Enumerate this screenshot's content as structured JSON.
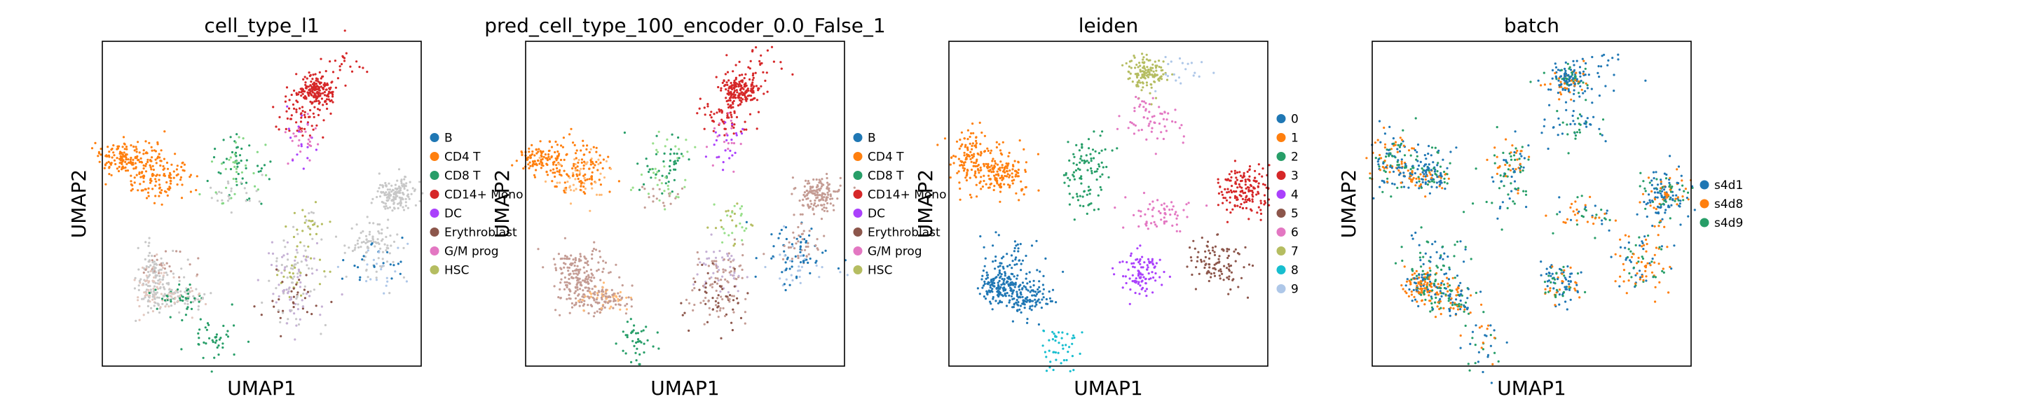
{
  "figure": {
    "background": "#ffffff",
    "panel_count": 4
  },
  "chart_data": [
    {
      "type": "scatter",
      "title": "cell_type_l1",
      "xlabel": "UMAP1",
      "ylabel": "UMAP2",
      "grid": false,
      "legend_placement": "right",
      "legend": [
        {
          "label": "B",
          "color": "#1f77b4"
        },
        {
          "label": "CD4 T",
          "color": "#ff7f0e"
        },
        {
          "label": "CD8 T",
          "color": "#279e68"
        },
        {
          "label": "CD14+ Mono",
          "color": "#d62728"
        },
        {
          "label": "DC",
          "color": "#aa40fc"
        },
        {
          "label": "Erythroblast",
          "color": "#8c564b"
        },
        {
          "label": "G/M prog",
          "color": "#e377c2"
        },
        {
          "label": "HSC",
          "color": "#b5bd61"
        }
      ],
      "clusters": [
        {
          "x": 0.67,
          "y": 0.15,
          "count": 170,
          "colors": [
            "#d62728"
          ]
        },
        {
          "x": 0.62,
          "y": 0.23,
          "count": 60,
          "colors": [
            "#d62728"
          ]
        },
        {
          "x": 0.76,
          "y": 0.08,
          "count": 25,
          "colors": [
            "#d62728"
          ]
        },
        {
          "x": 0.63,
          "y": 0.31,
          "count": 40,
          "colors": [
            "#aa40fc",
            "#e377c2"
          ]
        },
        {
          "x": 0.06,
          "y": 0.36,
          "count": 120,
          "colors": [
            "#ff7f0e"
          ]
        },
        {
          "x": 0.17,
          "y": 0.42,
          "count": 110,
          "colors": [
            "#ff7f0e"
          ]
        },
        {
          "x": 0.17,
          "y": 0.36,
          "count": 40,
          "colors": [
            "#ff7f0e"
          ]
        },
        {
          "x": 0.44,
          "y": 0.38,
          "count": 70,
          "colors": [
            "#86d886",
            "#279e68"
          ]
        },
        {
          "x": 0.42,
          "y": 0.47,
          "count": 30,
          "colors": [
            "#c8c8c8",
            "#86d886"
          ]
        },
        {
          "x": 0.65,
          "y": 0.56,
          "count": 35,
          "colors": [
            "#b5bd61",
            "#c8c8c8"
          ]
        },
        {
          "x": 0.61,
          "y": 0.7,
          "count": 80,
          "colors": [
            "#c5b0d5",
            "#b5bd61",
            "#c8c8c8"
          ]
        },
        {
          "x": 0.6,
          "y": 0.8,
          "count": 90,
          "colors": [
            "#8c564b",
            "#c5b0d5",
            "#c8c8c8"
          ]
        },
        {
          "x": 0.92,
          "y": 0.47,
          "count": 140,
          "colors": [
            "#c8c8c8"
          ]
        },
        {
          "x": 0.85,
          "y": 0.62,
          "count": 70,
          "colors": [
            "#c8c8c8"
          ]
        },
        {
          "x": 0.86,
          "y": 0.69,
          "count": 60,
          "colors": [
            "#1f77b4",
            "#aec7e8",
            "#c8c8c8"
          ]
        },
        {
          "x": 0.16,
          "y": 0.75,
          "count": 150,
          "colors": [
            "#c8c8c8",
            "#c8c8c8",
            "#e3c7be"
          ]
        },
        {
          "x": 0.25,
          "y": 0.79,
          "count": 120,
          "colors": [
            "#c8c8c8",
            "#c8c8c8",
            "#e3c7be",
            "#279e68"
          ]
        },
        {
          "x": 0.19,
          "y": 0.68,
          "count": 50,
          "colors": [
            "#c49c94",
            "#c8c8c8"
          ]
        },
        {
          "x": 0.35,
          "y": 0.92,
          "count": 40,
          "colors": [
            "#279e68"
          ]
        }
      ]
    },
    {
      "type": "scatter",
      "title": "pred_cell_type_100_encoder_0.0_False_1",
      "xlabel": "UMAP1",
      "ylabel": "UMAP2",
      "grid": false,
      "legend_placement": "right",
      "legend": [
        {
          "label": "B",
          "color": "#1f77b4"
        },
        {
          "label": "CD4 T",
          "color": "#ff7f0e"
        },
        {
          "label": "CD8 T",
          "color": "#279e68"
        },
        {
          "label": "CD14+ Mono",
          "color": "#d62728"
        },
        {
          "label": "DC",
          "color": "#aa40fc"
        },
        {
          "label": "Erythroblast",
          "color": "#8c564b"
        },
        {
          "label": "G/M prog",
          "color": "#e377c2"
        },
        {
          "label": "HSC",
          "color": "#b5bd61"
        }
      ],
      "clusters": [
        {
          "x": 0.67,
          "y": 0.15,
          "count": 170,
          "colors": [
            "#d62728"
          ]
        },
        {
          "x": 0.62,
          "y": 0.23,
          "count": 60,
          "colors": [
            "#d62728"
          ]
        },
        {
          "x": 0.76,
          "y": 0.08,
          "count": 25,
          "colors": [
            "#d62728"
          ]
        },
        {
          "x": 0.63,
          "y": 0.31,
          "count": 40,
          "colors": [
            "#aa40fc",
            "#e377c2"
          ]
        },
        {
          "x": 0.06,
          "y": 0.36,
          "count": 120,
          "colors": [
            "#ff7f0e"
          ]
        },
        {
          "x": 0.17,
          "y": 0.42,
          "count": 110,
          "colors": [
            "#ff7f0e",
            "#ffbb78"
          ]
        },
        {
          "x": 0.17,
          "y": 0.36,
          "count": 40,
          "colors": [
            "#ff7f0e"
          ]
        },
        {
          "x": 0.44,
          "y": 0.38,
          "count": 70,
          "colors": [
            "#98df8a",
            "#279e68"
          ]
        },
        {
          "x": 0.42,
          "y": 0.47,
          "count": 30,
          "colors": [
            "#98df8a",
            "#c49c94"
          ]
        },
        {
          "x": 0.65,
          "y": 0.56,
          "count": 35,
          "colors": [
            "#b5bd61",
            "#98df8a"
          ]
        },
        {
          "x": 0.61,
          "y": 0.7,
          "count": 80,
          "colors": [
            "#c5b0d5",
            "#c49c94"
          ]
        },
        {
          "x": 0.6,
          "y": 0.8,
          "count": 90,
          "colors": [
            "#8c564b",
            "#c49c94"
          ]
        },
        {
          "x": 0.92,
          "y": 0.47,
          "count": 140,
          "colors": [
            "#c49c94"
          ]
        },
        {
          "x": 0.85,
          "y": 0.62,
          "count": 70,
          "colors": [
            "#c49c94",
            "#1f77b4"
          ]
        },
        {
          "x": 0.86,
          "y": 0.69,
          "count": 60,
          "colors": [
            "#1f77b4",
            "#aec7e8"
          ]
        },
        {
          "x": 0.16,
          "y": 0.75,
          "count": 150,
          "colors": [
            "#c49c94"
          ]
        },
        {
          "x": 0.25,
          "y": 0.79,
          "count": 120,
          "colors": [
            "#c49c94",
            "#c49c94",
            "#ffbb78"
          ]
        },
        {
          "x": 0.19,
          "y": 0.68,
          "count": 50,
          "colors": [
            "#c49c94"
          ]
        },
        {
          "x": 0.35,
          "y": 0.92,
          "count": 40,
          "colors": [
            "#279e68"
          ]
        }
      ]
    },
    {
      "type": "scatter",
      "title": "leiden",
      "xlabel": "UMAP1",
      "ylabel": "UMAP2",
      "grid": false,
      "legend_placement": "right",
      "legend": [
        {
          "label": "0",
          "color": "#1f77b4"
        },
        {
          "label": "1",
          "color": "#ff7f0e"
        },
        {
          "label": "2",
          "color": "#279e68"
        },
        {
          "label": "3",
          "color": "#d62728"
        },
        {
          "label": "4",
          "color": "#aa40fc"
        },
        {
          "label": "5",
          "color": "#8c564b"
        },
        {
          "label": "6",
          "color": "#e377c2"
        },
        {
          "label": "7",
          "color": "#b5bd61"
        },
        {
          "label": "8",
          "color": "#17becf"
        },
        {
          "label": "9",
          "color": "#aec7e8"
        }
      ],
      "clusters": [
        {
          "x": 0.62,
          "y": 0.1,
          "count": 130,
          "colors": [
            "#b5bd61"
          ]
        },
        {
          "x": 0.72,
          "y": 0.09,
          "count": 20,
          "colors": [
            "#aec7e8"
          ]
        },
        {
          "x": 0.63,
          "y": 0.24,
          "count": 60,
          "colors": [
            "#e377c2"
          ]
        },
        {
          "x": 0.06,
          "y": 0.36,
          "count": 120,
          "colors": [
            "#ff7f0e"
          ]
        },
        {
          "x": 0.17,
          "y": 0.42,
          "count": 110,
          "colors": [
            "#ff7f0e"
          ]
        },
        {
          "x": 0.17,
          "y": 0.36,
          "count": 40,
          "colors": [
            "#ff7f0e"
          ]
        },
        {
          "x": 0.44,
          "y": 0.38,
          "count": 70,
          "colors": [
            "#279e68"
          ]
        },
        {
          "x": 0.42,
          "y": 0.47,
          "count": 30,
          "colors": [
            "#279e68"
          ]
        },
        {
          "x": 0.67,
          "y": 0.53,
          "count": 60,
          "colors": [
            "#e377c2"
          ]
        },
        {
          "x": 0.61,
          "y": 0.72,
          "count": 100,
          "colors": [
            "#aa40fc"
          ]
        },
        {
          "x": 0.93,
          "y": 0.46,
          "count": 160,
          "colors": [
            "#d62728"
          ]
        },
        {
          "x": 0.84,
          "y": 0.68,
          "count": 100,
          "colors": [
            "#8c564b"
          ]
        },
        {
          "x": 0.16,
          "y": 0.75,
          "count": 150,
          "colors": [
            "#1f77b4"
          ]
        },
        {
          "x": 0.25,
          "y": 0.79,
          "count": 120,
          "colors": [
            "#1f77b4"
          ]
        },
        {
          "x": 0.19,
          "y": 0.66,
          "count": 50,
          "colors": [
            "#1f77b4"
          ]
        },
        {
          "x": 0.35,
          "y": 0.93,
          "count": 45,
          "colors": [
            "#17becf"
          ]
        }
      ]
    },
    {
      "type": "scatter",
      "title": "batch",
      "xlabel": "UMAP1",
      "ylabel": "UMAP2",
      "grid": false,
      "legend_placement": "right",
      "legend": [
        {
          "label": "s4d1",
          "color": "#1f77b4"
        },
        {
          "label": "s4d8",
          "color": "#ff7f0e"
        },
        {
          "label": "s4d9",
          "color": "#279e68"
        }
      ],
      "clusters": [
        {
          "x": 0.62,
          "y": 0.12,
          "count": 150,
          "colors": [
            "#1f77b4",
            "#1f77b4",
            "#1f77b4",
            "#279e68",
            "#ff7f0e"
          ]
        },
        {
          "x": 0.73,
          "y": 0.09,
          "count": 20,
          "colors": [
            "#1f77b4"
          ]
        },
        {
          "x": 0.63,
          "y": 0.25,
          "count": 50,
          "colors": [
            "#1f77b4",
            "#1f77b4",
            "#279e68"
          ]
        },
        {
          "x": 0.06,
          "y": 0.36,
          "count": 120,
          "colors": [
            "#1f77b4",
            "#1f77b4",
            "#279e68",
            "#ff7f0e"
          ]
        },
        {
          "x": 0.17,
          "y": 0.42,
          "count": 110,
          "colors": [
            "#1f77b4",
            "#1f77b4",
            "#279e68",
            "#ff7f0e"
          ]
        },
        {
          "x": 0.17,
          "y": 0.36,
          "count": 40,
          "colors": [
            "#1f77b4",
            "#279e68"
          ]
        },
        {
          "x": 0.44,
          "y": 0.38,
          "count": 70,
          "colors": [
            "#ff7f0e",
            "#1f77b4",
            "#279e68"
          ]
        },
        {
          "x": 0.42,
          "y": 0.47,
          "count": 30,
          "colors": [
            "#1f77b4",
            "#279e68"
          ]
        },
        {
          "x": 0.66,
          "y": 0.54,
          "count": 50,
          "colors": [
            "#1f77b4",
            "#279e68",
            "#ff7f0e"
          ]
        },
        {
          "x": 0.59,
          "y": 0.74,
          "count": 100,
          "colors": [
            "#1f77b4",
            "#1f77b4",
            "#279e68",
            "#ff7f0e"
          ]
        },
        {
          "x": 0.92,
          "y": 0.48,
          "count": 160,
          "colors": [
            "#1f77b4",
            "#1f77b4",
            "#ff7f0e",
            "#279e68"
          ]
        },
        {
          "x": 0.84,
          "y": 0.68,
          "count": 100,
          "colors": [
            "#1f77b4",
            "#ff7f0e",
            "#ff7f0e",
            "#279e68"
          ]
        },
        {
          "x": 0.16,
          "y": 0.75,
          "count": 150,
          "colors": [
            "#ff7f0e",
            "#1f77b4",
            "#279e68",
            "#ff7f0e"
          ]
        },
        {
          "x": 0.25,
          "y": 0.79,
          "count": 120,
          "colors": [
            "#1f77b4",
            "#ff7f0e",
            "#279e68"
          ]
        },
        {
          "x": 0.19,
          "y": 0.66,
          "count": 50,
          "colors": [
            "#1f77b4",
            "#279e68"
          ]
        },
        {
          "x": 0.35,
          "y": 0.93,
          "count": 40,
          "colors": [
            "#1f77b4",
            "#ff7f0e",
            "#279e68"
          ]
        }
      ]
    }
  ]
}
